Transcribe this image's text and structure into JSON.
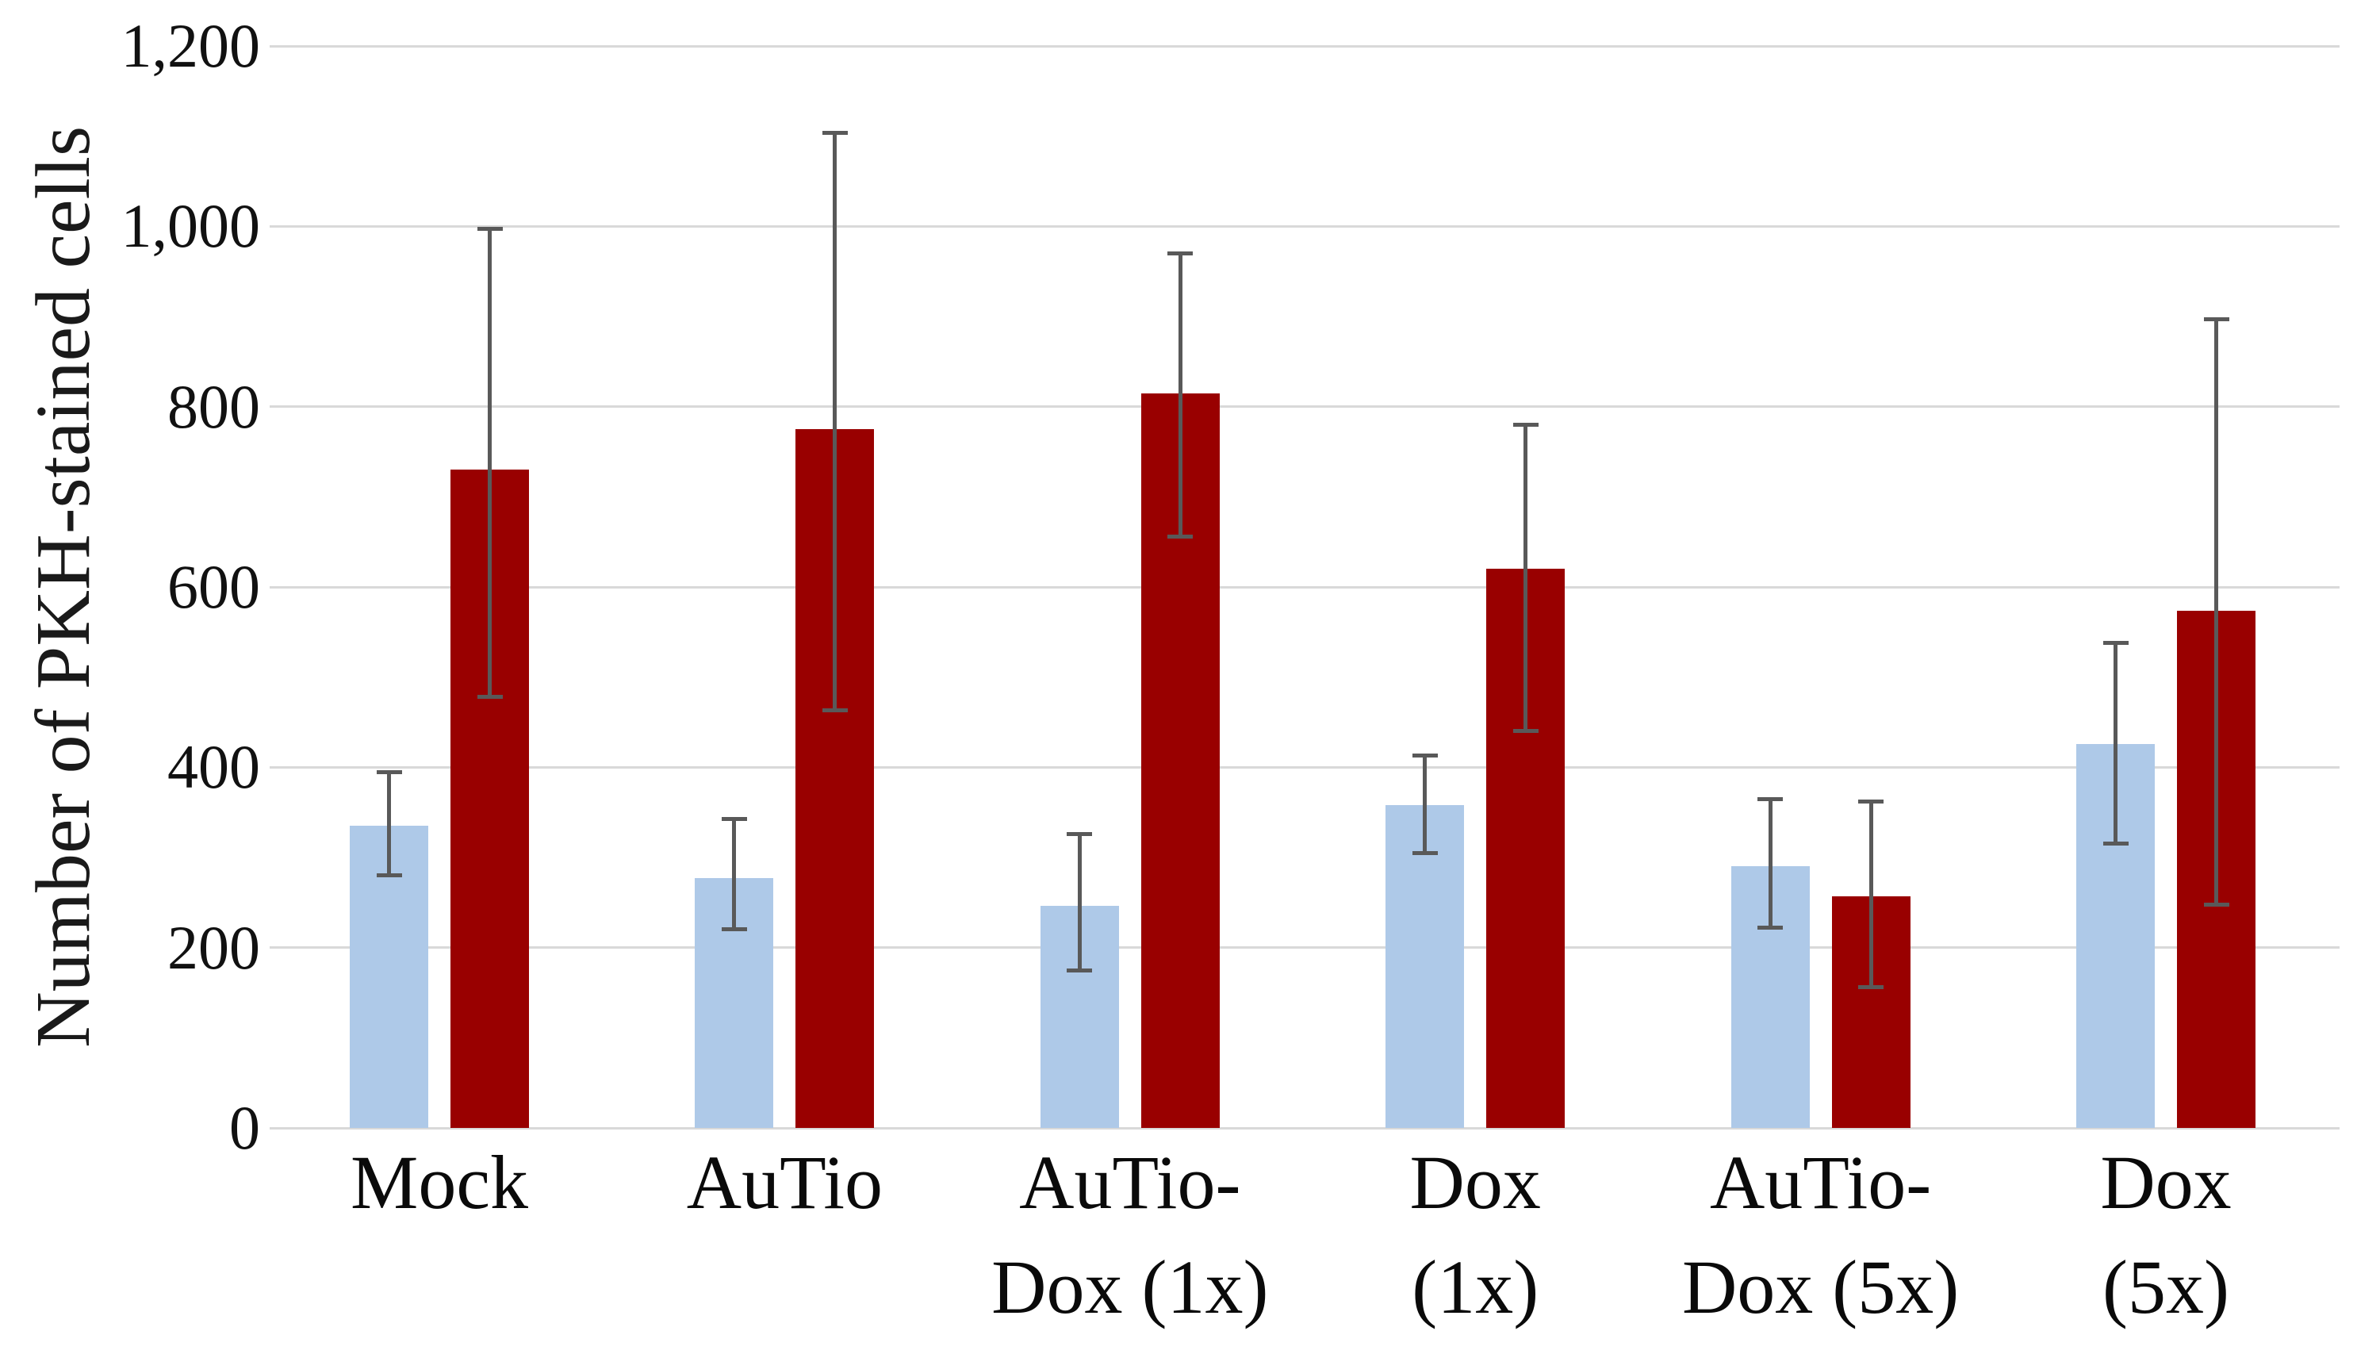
{
  "chart_data": {
    "type": "bar",
    "title": "",
    "ylabel": "Number of PKH-stained cells",
    "xlabel": "",
    "ylim": [
      0,
      1200
    ],
    "yticks": [
      0,
      200,
      400,
      600,
      800,
      1000,
      1200
    ],
    "ytick_labels": [
      "0",
      "200",
      "400",
      "600",
      "800",
      "1,000",
      "1,200"
    ],
    "grid": "horizontal gridlines",
    "legend": "none",
    "categories": [
      "Mock",
      "AuTio",
      "AuTio-Dox (1x)",
      "Dox (1x)",
      "AuTio-Dox (5x)",
      "Dox (5x)"
    ],
    "category_label_lines": [
      [
        "Mock"
      ],
      [
        "AuTio"
      ],
      [
        "AuTio-",
        "Dox (1x)"
      ],
      [
        "Dox",
        "(1x)"
      ],
      [
        "AuTio-",
        "Dox (5x)"
      ],
      [
        "Dox",
        "(5x)"
      ]
    ],
    "series": [
      {
        "name": "light-blue-bars",
        "color": "#aec9e8",
        "values": [
          335,
          277,
          246,
          358,
          290,
          426
        ],
        "error_low": [
          280,
          220,
          175,
          305,
          222,
          315
        ],
        "error_high": [
          395,
          343,
          326,
          413,
          365,
          538
        ]
      },
      {
        "name": "dark-red-bars",
        "color": "#990000",
        "values": [
          730,
          775,
          815,
          620,
          257,
          574
        ],
        "error_low": [
          478,
          463,
          656,
          440,
          156,
          248
        ],
        "error_high": [
          997,
          1104,
          970,
          780,
          362,
          897
        ]
      }
    ],
    "colors": {
      "gridline": "#d9d9d9",
      "error_bar": "#595959",
      "text": "#000000",
      "background": "#ffffff"
    }
  }
}
